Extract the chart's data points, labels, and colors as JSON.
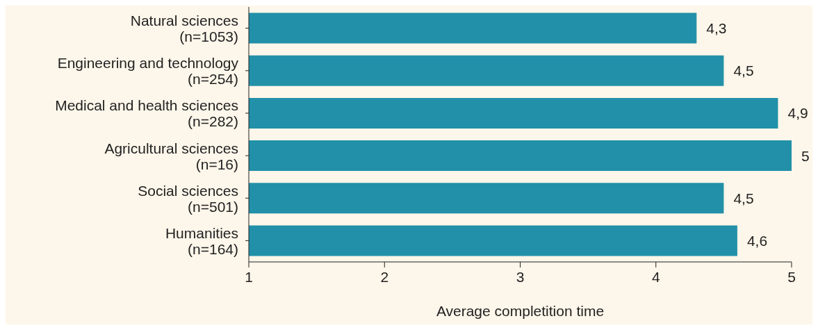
{
  "chart_data": {
    "type": "bar",
    "orientation": "horizontal",
    "xlabel": "Average completition time",
    "categories": [
      "Natural sciences\n(n=1053)",
      "Engineering and technology\n(n=254)",
      "Medical and health sciences\n(n=282)",
      "Agricultural sciences\n(n=16)",
      "Social sciences\n(n=501)",
      "Humanities\n(n=164)"
    ],
    "values": [
      4.3,
      4.5,
      4.9,
      5,
      4.5,
      4.6
    ],
    "value_labels": [
      "4,3",
      "4,5",
      "4,9",
      "5",
      "4,5",
      "4,6"
    ],
    "color": "#2290a8",
    "xlim": [
      1,
      5
    ],
    "xticks": [
      1,
      2,
      3,
      4,
      5
    ],
    "grid": false,
    "legend": false
  }
}
